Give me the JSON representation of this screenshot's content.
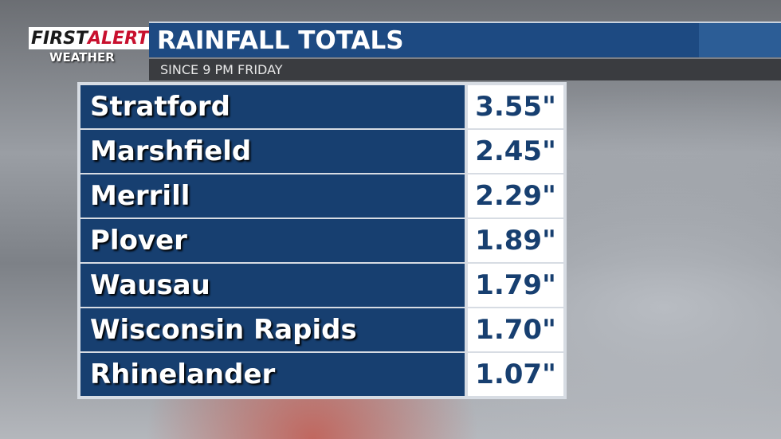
{
  "logo": {
    "first": "FIRST",
    "alert": "ALERT",
    "weather": "WEATHER"
  },
  "header": {
    "title": "RAINFALL TOTALS",
    "subtitle": "SINCE 9 PM FRIDAY"
  },
  "table": {
    "rows": [
      [
        "Stratford",
        "3.55\""
      ],
      [
        "Marshfield",
        "2.45\""
      ],
      [
        "Merrill",
        "2.29\""
      ],
      [
        "Plover",
        "1.89\""
      ],
      [
        "Wausau",
        "1.79\""
      ],
      [
        "Wisconsin Rapids",
        "1.70\""
      ],
      [
        "Rhinelander",
        "1.07\""
      ]
    ]
  }
}
